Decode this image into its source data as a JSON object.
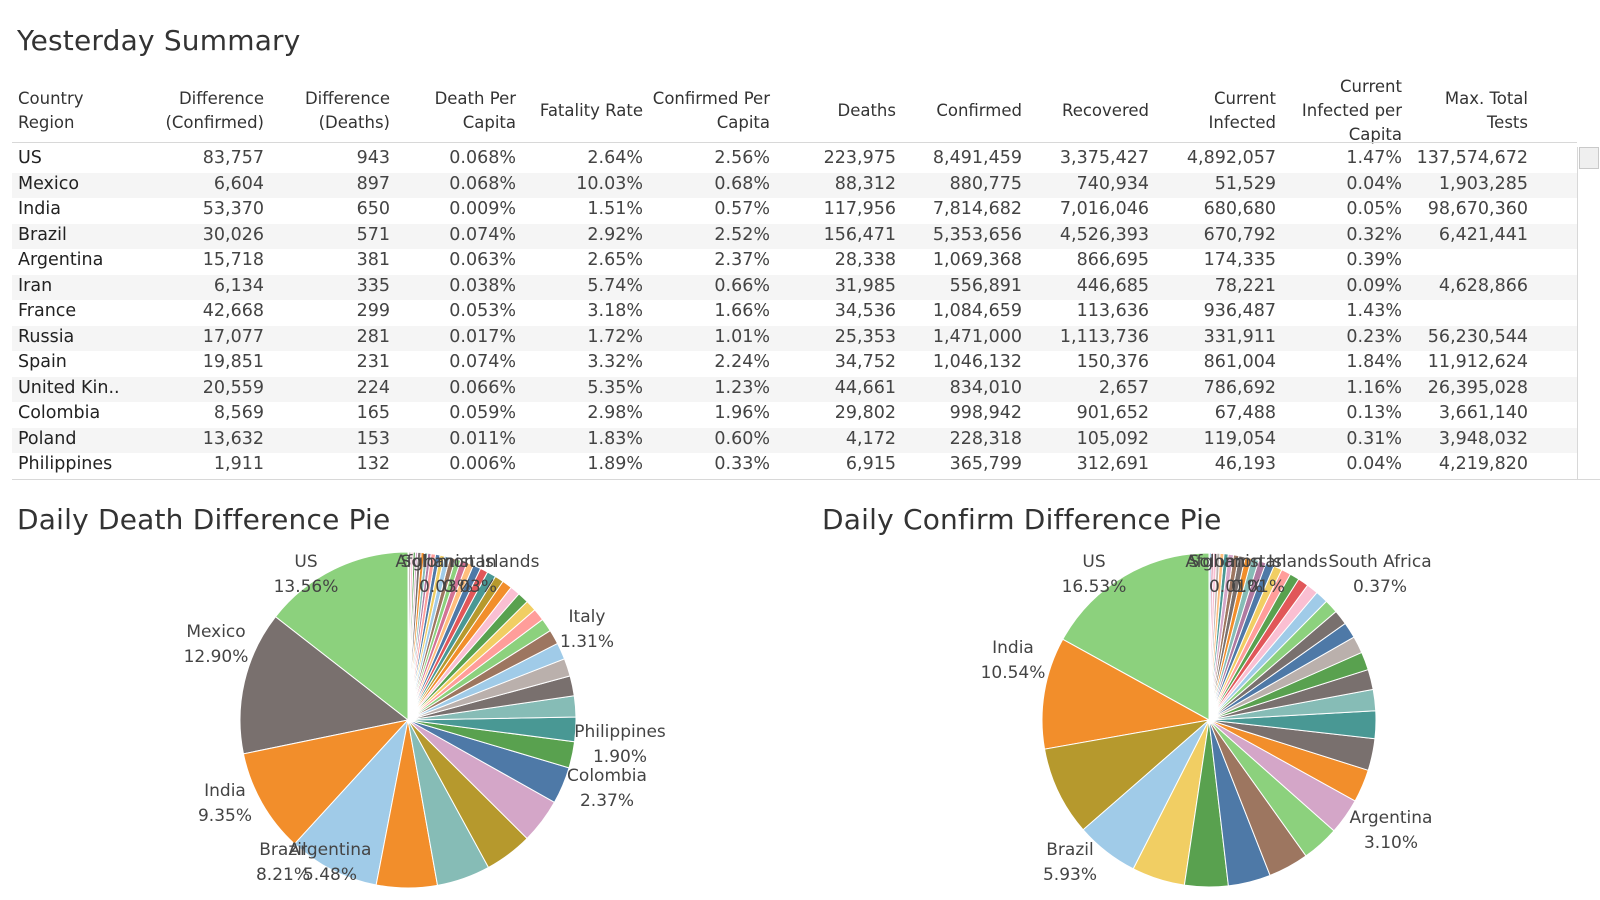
{
  "titles": {
    "summary": "Yesterday Summary",
    "death_pie": "Daily Death Difference Pie",
    "confirm_pie": "Daily Confirm Difference Pie"
  },
  "table": {
    "headers": [
      [
        "Country",
        "Region"
      ],
      [
        "Difference",
        "(Confirmed)"
      ],
      [
        "Difference",
        "(Deaths)"
      ],
      [
        "Death Per",
        "Capita"
      ],
      [
        "Fatality Rate"
      ],
      [
        "Confirmed Per",
        "Capita"
      ],
      [
        "Deaths"
      ],
      [
        "Confirmed"
      ],
      [
        "Recovered"
      ],
      [
        "Current",
        "Infected"
      ],
      [
        "Current",
        "Infected per",
        "Capita"
      ],
      [
        "Max. Total",
        "Tests"
      ]
    ],
    "rows": [
      [
        "US",
        "83,757",
        "943",
        "0.068%",
        "2.64%",
        "2.56%",
        "223,975",
        "8,491,459",
        "3,375,427",
        "4,892,057",
        "1.47%",
        "137,574,672"
      ],
      [
        "Mexico",
        "6,604",
        "897",
        "0.068%",
        "10.03%",
        "0.68%",
        "88,312",
        "880,775",
        "740,934",
        "51,529",
        "0.04%",
        "1,903,285"
      ],
      [
        "India",
        "53,370",
        "650",
        "0.009%",
        "1.51%",
        "0.57%",
        "117,956",
        "7,814,682",
        "7,016,046",
        "680,680",
        "0.05%",
        "98,670,360"
      ],
      [
        "Brazil",
        "30,026",
        "571",
        "0.074%",
        "2.92%",
        "2.52%",
        "156,471",
        "5,353,656",
        "4,526,393",
        "670,792",
        "0.32%",
        "6,421,441"
      ],
      [
        "Argentina",
        "15,718",
        "381",
        "0.063%",
        "2.65%",
        "2.37%",
        "28,338",
        "1,069,368",
        "866,695",
        "174,335",
        "0.39%",
        ""
      ],
      [
        "Iran",
        "6,134",
        "335",
        "0.038%",
        "5.74%",
        "0.66%",
        "31,985",
        "556,891",
        "446,685",
        "78,221",
        "0.09%",
        "4,628,866"
      ],
      [
        "France",
        "42,668",
        "299",
        "0.053%",
        "3.18%",
        "1.66%",
        "34,536",
        "1,084,659",
        "113,636",
        "936,487",
        "1.43%",
        ""
      ],
      [
        "Russia",
        "17,077",
        "281",
        "0.017%",
        "1.72%",
        "1.01%",
        "25,353",
        "1,471,000",
        "1,113,736",
        "331,911",
        "0.23%",
        "56,230,544"
      ],
      [
        "Spain",
        "19,851",
        "231",
        "0.074%",
        "3.32%",
        "2.24%",
        "34,752",
        "1,046,132",
        "150,376",
        "861,004",
        "1.84%",
        "11,912,624"
      ],
      [
        "United Kin..",
        "20,559",
        "224",
        "0.066%",
        "5.35%",
        "1.23%",
        "44,661",
        "834,010",
        "2,657",
        "786,692",
        "1.16%",
        "26,395,028"
      ],
      [
        "Colombia",
        "8,569",
        "165",
        "0.059%",
        "2.98%",
        "1.96%",
        "29,802",
        "998,942",
        "901,652",
        "67,488",
        "0.13%",
        "3,661,140"
      ],
      [
        "Poland",
        "13,632",
        "153",
        "0.011%",
        "1.83%",
        "0.60%",
        "4,172",
        "228,318",
        "105,092",
        "119,054",
        "0.31%",
        "3,948,032"
      ],
      [
        "Philippines",
        "1,911",
        "132",
        "0.006%",
        "1.89%",
        "0.33%",
        "6,915",
        "365,799",
        "312,691",
        "46,193",
        "0.04%",
        "4,219,820"
      ]
    ]
  },
  "chart_data": [
    {
      "type": "pie",
      "title": "Daily Death Difference Pie",
      "slices": [
        {
          "name": "US",
          "value": 13.56,
          "color": "#8cd17d"
        },
        {
          "name": "Mexico",
          "value": 12.9,
          "color": "#79706e"
        },
        {
          "name": "India",
          "value": 9.35,
          "color": "#f28e2b"
        },
        {
          "name": "Brazil",
          "value": 8.21,
          "color": "#a0cbe8"
        },
        {
          "name": "Argentina",
          "value": 5.48,
          "color": "#f28e2b"
        },
        {
          "name": "",
          "value": 4.82,
          "color": "#86bcb6"
        },
        {
          "name": "",
          "value": 4.3,
          "color": "#b6992d"
        },
        {
          "name": "",
          "value": 4.04,
          "color": "#d4a6c8"
        },
        {
          "name": "",
          "value": 3.33,
          "color": "#4e79a7"
        },
        {
          "name": "Colombia",
          "value": 2.37,
          "color": "#59a14f"
        },
        {
          "name": "",
          "value": 2.2,
          "color": "#499894"
        },
        {
          "name": "Philippines",
          "value": 1.9,
          "color": "#86bcb6"
        },
        {
          "name": "",
          "value": 1.8,
          "color": "#79706e"
        },
        {
          "name": "",
          "value": 1.6,
          "color": "#bab0ac"
        },
        {
          "name": "",
          "value": 1.5,
          "color": "#a0cbe8"
        },
        {
          "name": "Italy",
          "value": 1.31,
          "color": "#9d7660"
        },
        {
          "name": "",
          "value": 1.2,
          "color": "#8cd17d"
        },
        {
          "name": "",
          "value": 1.1,
          "color": "#ff9d9a"
        },
        {
          "name": "",
          "value": 1.0,
          "color": "#f1ce63"
        },
        {
          "name": "",
          "value": 1.0,
          "color": "#59a14f"
        },
        {
          "name": "",
          "value": 0.9,
          "color": "#fabfd2"
        },
        {
          "name": "",
          "value": 0.9,
          "color": "#f28e2b"
        },
        {
          "name": "",
          "value": 0.8,
          "color": "#b6992d"
        },
        {
          "name": "",
          "value": 0.8,
          "color": "#499894"
        },
        {
          "name": "",
          "value": 0.7,
          "color": "#e15759"
        },
        {
          "name": "",
          "value": 0.7,
          "color": "#4e79a7"
        },
        {
          "name": "",
          "value": 0.6,
          "color": "#ffbe7d"
        },
        {
          "name": "",
          "value": 0.6,
          "color": "#d37295"
        },
        {
          "name": "",
          "value": 0.5,
          "color": "#8cd17d"
        },
        {
          "name": "",
          "value": 0.5,
          "color": "#9d7660"
        },
        {
          "name": "",
          "value": 0.5,
          "color": "#a0cbe8"
        },
        {
          "name": "",
          "value": 0.4,
          "color": "#f1ce63"
        },
        {
          "name": "",
          "value": 0.4,
          "color": "#4e79a7"
        },
        {
          "name": "",
          "value": 0.4,
          "color": "#ff9d9a"
        },
        {
          "name": "",
          "value": 0.3,
          "color": "#b07aa1"
        },
        {
          "name": "",
          "value": 0.3,
          "color": "#86bcb6"
        },
        {
          "name": "",
          "value": 0.3,
          "color": "#f28e2b"
        },
        {
          "name": "",
          "value": 0.3,
          "color": "#79706e"
        },
        {
          "name": "",
          "value": 0.2,
          "color": "#d4a6c8"
        },
        {
          "name": "",
          "value": 0.2,
          "color": "#59a14f"
        },
        {
          "name": "",
          "value": 0.2,
          "color": "#fabfd2"
        },
        {
          "name": "",
          "value": 0.2,
          "color": "#bab0ac"
        },
        {
          "name": "Solomon Islands",
          "value": 0.03,
          "color": "#e15759"
        },
        {
          "name": "Afghanistan",
          "value": 0.03,
          "color": "#a0cbe8"
        }
      ]
    },
    {
      "type": "pie",
      "title": "Daily Confirm Difference Pie",
      "slices": [
        {
          "name": "US",
          "value": 16.53,
          "color": "#8cd17d"
        },
        {
          "name": "India",
          "value": 10.54,
          "color": "#f28e2b"
        },
        {
          "name": "",
          "value": 8.4,
          "color": "#b6992d"
        },
        {
          "name": "Brazil",
          "value": 5.93,
          "color": "#a0cbe8"
        },
        {
          "name": "",
          "value": 5.0,
          "color": "#f1ce63"
        },
        {
          "name": "",
          "value": 4.1,
          "color": "#59a14f"
        },
        {
          "name": "",
          "value": 4.0,
          "color": "#4e79a7"
        },
        {
          "name": "",
          "value": 3.8,
          "color": "#9d7660"
        },
        {
          "name": "",
          "value": 3.5,
          "color": "#8cd17d"
        },
        {
          "name": "",
          "value": 3.4,
          "color": "#d4a6c8"
        },
        {
          "name": "Argentina",
          "value": 3.1,
          "color": "#f28e2b"
        },
        {
          "name": "",
          "value": 3.0,
          "color": "#79706e"
        },
        {
          "name": "",
          "value": 2.6,
          "color": "#499894"
        },
        {
          "name": "",
          "value": 2.0,
          "color": "#86bcb6"
        },
        {
          "name": "",
          "value": 1.9,
          "color": "#79706e"
        },
        {
          "name": "",
          "value": 1.7,
          "color": "#59a14f"
        },
        {
          "name": "",
          "value": 1.6,
          "color": "#bab0ac"
        },
        {
          "name": "",
          "value": 1.5,
          "color": "#4e79a7"
        },
        {
          "name": "",
          "value": 1.4,
          "color": "#79706e"
        },
        {
          "name": "",
          "value": 1.3,
          "color": "#8cd17d"
        },
        {
          "name": "",
          "value": 1.2,
          "color": "#a0cbe8"
        },
        {
          "name": "",
          "value": 1.1,
          "color": "#fabfd2"
        },
        {
          "name": "",
          "value": 1.0,
          "color": "#e15759"
        },
        {
          "name": "",
          "value": 0.9,
          "color": "#59a14f"
        },
        {
          "name": "",
          "value": 0.9,
          "color": "#ff9d9a"
        },
        {
          "name": "",
          "value": 0.8,
          "color": "#f1ce63"
        },
        {
          "name": "",
          "value": 0.8,
          "color": "#4e79a7"
        },
        {
          "name": "",
          "value": 0.7,
          "color": "#b07aa1"
        },
        {
          "name": "",
          "value": 0.7,
          "color": "#86bcb6"
        },
        {
          "name": "",
          "value": 0.6,
          "color": "#f28e2b"
        },
        {
          "name": "",
          "value": 0.6,
          "color": "#79706e"
        },
        {
          "name": "",
          "value": 0.5,
          "color": "#9d7660"
        },
        {
          "name": "",
          "value": 0.5,
          "color": "#d4a6c8"
        },
        {
          "name": "",
          "value": 0.4,
          "color": "#499894"
        },
        {
          "name": "South Africa",
          "value": 0.37,
          "color": "#ffbe7d"
        },
        {
          "name": "",
          "value": 0.3,
          "color": "#bab0ac"
        },
        {
          "name": "",
          "value": 0.3,
          "color": "#fabfd2"
        },
        {
          "name": "",
          "value": 0.2,
          "color": "#d37295"
        },
        {
          "name": "",
          "value": 0.2,
          "color": "#a0cbe8"
        },
        {
          "name": "Solomon Islands",
          "value": 0.01,
          "color": "#e15759"
        },
        {
          "name": "Afghanistan",
          "value": 0.01,
          "color": "#a0cbe8"
        }
      ]
    }
  ],
  "pie_labels": {
    "death": [
      {
        "name": "US",
        "pct": "13.56%"
      },
      {
        "name": "Mexico",
        "pct": "12.90%"
      },
      {
        "name": "India",
        "pct": "9.35%"
      },
      {
        "name": "Brazil",
        "pct": "8.21%"
      },
      {
        "name": "Argentina",
        "pct": "5.48%"
      },
      {
        "name": "Colombia",
        "pct": "2.37%"
      },
      {
        "name": "Philippines",
        "pct": "1.90%"
      },
      {
        "name": "Italy",
        "pct": "1.31%"
      },
      {
        "name": "Solomon Islands",
        "pct": "0.03%"
      },
      {
        "name": "Afghanistan",
        "pct": "0.03%"
      }
    ],
    "confirm": [
      {
        "name": "US",
        "pct": "16.53%"
      },
      {
        "name": "India",
        "pct": "10.54%"
      },
      {
        "name": "Brazil",
        "pct": "5.93%"
      },
      {
        "name": "Argentina",
        "pct": "3.10%"
      },
      {
        "name": "South Africa",
        "pct": "0.37%"
      },
      {
        "name": "Solomon Islands",
        "pct": "0.01%"
      },
      {
        "name": "Afghanistan",
        "pct": "0.01%"
      }
    ]
  }
}
